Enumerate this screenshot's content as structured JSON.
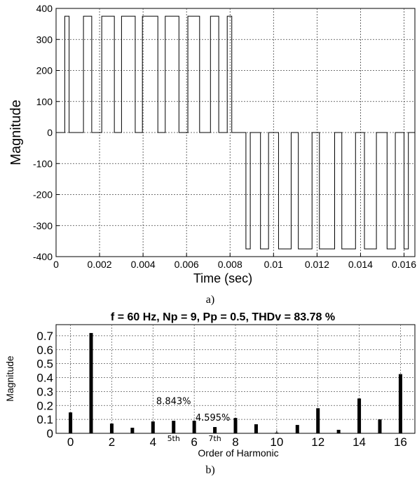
{
  "captions": {
    "a": "a)",
    "b": "b)"
  },
  "chart_data": [
    {
      "type": "line",
      "title": "",
      "xlabel": "Time (sec)",
      "ylabel": "Magnitude",
      "xlim": [
        0,
        0.0165
      ],
      "ylim": [
        -400,
        400
      ],
      "xticks": [
        0,
        0.002,
        0.004,
        0.006,
        0.008,
        0.01,
        0.012,
        0.014,
        0.016
      ],
      "xtick_labels": [
        "0",
        "0.002",
        "0.004",
        "0.006",
        "0.008",
        "0.01",
        "0.012",
        "0.014",
        "0.016"
      ],
      "yticks": [
        400,
        300,
        200,
        100,
        0,
        -100,
        -200,
        -300,
        -400
      ],
      "ytick_labels": [
        "400",
        "300",
        "200",
        "100",
        "0",
        "-100",
        "-200",
        "-300",
        "-400"
      ],
      "grid": true,
      "amplitude": 375,
      "pulses_positive": [
        [
          0.0004,
          0.0006
        ],
        [
          0.00126,
          0.00164
        ],
        [
          0.0021,
          0.00268
        ],
        [
          0.00301,
          0.00364
        ],
        [
          0.00397,
          0.00468
        ],
        [
          0.00502,
          0.00565
        ],
        [
          0.00606,
          0.0066
        ],
        [
          0.0071,
          0.00748
        ],
        [
          0.00787,
          0.00808
        ]
      ],
      "pulses_negative": [
        [
          0.00873,
          0.00893
        ],
        [
          0.0094,
          0.00977
        ],
        [
          0.01023,
          0.01081
        ],
        [
          0.01114,
          0.01177
        ],
        [
          0.01211,
          0.01281
        ],
        [
          0.01314,
          0.01377
        ],
        [
          0.01418,
          0.01473
        ],
        [
          0.01522,
          0.0156
        ],
        [
          0.016,
          0.0162
        ]
      ]
    },
    {
      "type": "bar",
      "title": "f = 60 Hz, Np = 9, Pp = 0.5, THDv = 83.78 %",
      "xlabel": "Order of Harmonic",
      "ylabel": "Magnitude",
      "xlim": [
        -0.7,
        16.7
      ],
      "ylim": [
        0,
        0.78
      ],
      "xticks": [
        0,
        2,
        4,
        6,
        8,
        10,
        12,
        14,
        16
      ],
      "xtick_labels": [
        "0",
        "2",
        "4",
        "6",
        "8",
        "10",
        "12",
        "14",
        "16"
      ],
      "yticks": [
        0,
        0.1,
        0.2,
        0.3,
        0.4,
        0.5,
        0.6,
        0.7
      ],
      "ytick_labels": [
        "0",
        "0.1",
        "0.2",
        "0.3",
        "0.4",
        "0.5",
        "0.6",
        "0.7"
      ],
      "grid": true,
      "categories": [
        0,
        1,
        2,
        3,
        4,
        5,
        6,
        7,
        8,
        9,
        10,
        11,
        12,
        13,
        14,
        15,
        16
      ],
      "values": [
        0.15,
        0.72,
        0.07,
        0.04,
        0.085,
        0.09,
        0.09,
        0.045,
        0.11,
        0.065,
        0.005,
        0.06,
        0.18,
        0.025,
        0.25,
        0.1,
        0.425
      ],
      "annotations": [
        {
          "text": "8.843%",
          "x": 5,
          "y": 0.21
        },
        {
          "text": "4.595%",
          "x": 6.9,
          "y": 0.09
        },
        {
          "text": "5th",
          "x": 5,
          "y": -0.055
        },
        {
          "text": "7th",
          "x": 7,
          "y": -0.055
        }
      ]
    }
  ]
}
